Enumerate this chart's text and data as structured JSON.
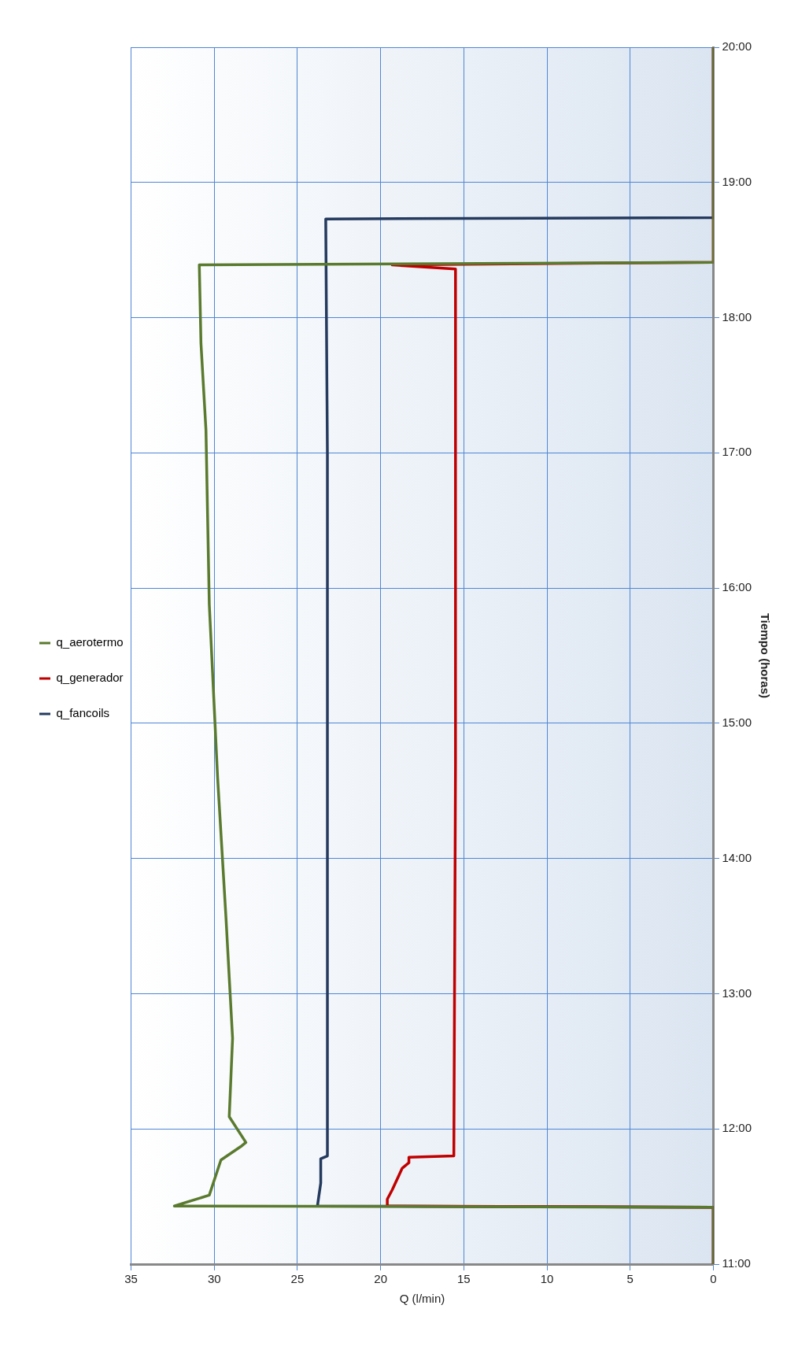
{
  "chart_data": {
    "type": "line",
    "orientation": "horizontal",
    "xlabel": "Q (l/min)",
    "ylabel": "Tiempo (horas)",
    "xlim": [
      35,
      0
    ],
    "xticks": [
      35,
      30,
      25,
      20,
      15,
      10,
      5,
      0
    ],
    "ylim": [
      11,
      20
    ],
    "yticks": [
      {
        "value": 11,
        "label": "11:00"
      },
      {
        "value": 12,
        "label": "12:00"
      },
      {
        "value": 13,
        "label": "13:00"
      },
      {
        "value": 14,
        "label": "14:00"
      },
      {
        "value": 15,
        "label": "15:00"
      },
      {
        "value": 16,
        "label": "16:00"
      },
      {
        "value": 17,
        "label": "17:00"
      },
      {
        "value": 18,
        "label": "18:00"
      },
      {
        "value": 19,
        "label": "19:00"
      },
      {
        "value": 20,
        "label": "20:00"
      }
    ],
    "grid": true,
    "legend": "left",
    "line_style": "solid",
    "series": [
      {
        "name": "q_aerotermo",
        "color": "#5a7a2e",
        "x": [
          11,
          11.42,
          11.43,
          11.51,
          11.77,
          11.87,
          11.9,
          12.09,
          12.67,
          13.57,
          14.6,
          15.88,
          17.17,
          17.81,
          18.39,
          18.41,
          20
        ],
        "values": [
          0,
          0,
          32.4,
          30.3,
          29.6,
          28.4,
          28.1,
          29.1,
          28.9,
          29.3,
          29.8,
          30.3,
          30.5,
          30.8,
          30.9,
          0,
          0
        ]
      },
      {
        "name": "q_generador",
        "color": "#c00000",
        "x": [
          11,
          11.42,
          11.43,
          11.48,
          11.55,
          11.71,
          11.75,
          11.79,
          11.8,
          14.7,
          16.5,
          18.36,
          18.39,
          18.41,
          20
        ],
        "values": [
          0,
          0,
          19.6,
          19.6,
          19.3,
          18.7,
          18.3,
          18.3,
          15.6,
          15.5,
          15.5,
          15.5,
          19.3,
          0,
          0
        ]
      },
      {
        "name": "q_fancoils",
        "color": "#243a5e",
        "x": [
          11,
          11.42,
          11.43,
          11.6,
          11.78,
          11.8,
          13,
          15,
          17,
          18.73,
          18.74,
          20
        ],
        "values": [
          0,
          0,
          23.8,
          23.6,
          23.6,
          23.2,
          23.2,
          23.2,
          23.2,
          23.3,
          0,
          0
        ]
      }
    ]
  }
}
